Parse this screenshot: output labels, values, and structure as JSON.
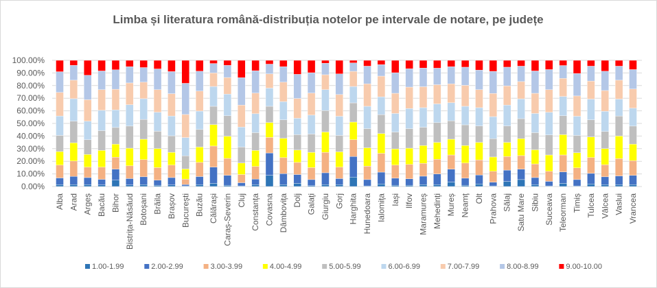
{
  "chart_data": {
    "type": "bar",
    "stacked": true,
    "percent_stacked": true,
    "title": "Limba și literatura română-distribuția notelor pe intervale de notare, pe județe",
    "xlabel": "",
    "ylabel": "",
    "ylim": [
      0,
      100
    ],
    "y_ticks": [
      "0.00%",
      "10.00%",
      "20.00%",
      "30.00%",
      "40.00%",
      "50.00%",
      "60.00%",
      "70.00%",
      "80.00%",
      "90.00%",
      "100.00%"
    ],
    "grid": true,
    "legend_position": "bottom",
    "categories": [
      "Alba",
      "Arad",
      "Argeș",
      "Bacău",
      "Bihor",
      "Bistrița-Năsăud",
      "Botoșani",
      "Brăila",
      "Brașov",
      "București",
      "Buzău",
      "Călărași",
      "Caraș-Severin",
      "Cluj",
      "Constanța",
      "Covasna",
      "Dâmbovița",
      "Dolj",
      "Galați",
      "Giurgiu",
      "Gorj",
      "Harghita",
      "Hunedoara",
      "Ialomița",
      "Iași",
      "Ilfov",
      "Maramureș",
      "Mehedinți",
      "Mureș",
      "Neamț",
      "Olt",
      "Prahova",
      "Sălaj",
      "Satu Mare",
      "Sibiu",
      "Suceava",
      "Teleorman",
      "Timiș",
      "Tulcea",
      "Vâlcea",
      "Vaslui",
      "Vrancea"
    ],
    "series": [
      {
        "name": "1.00-1.99",
        "color": "#2E75B6",
        "values": [
          1.5,
          1.5,
          1.5,
          1.2,
          5,
          1.2,
          1.5,
          1,
          1.2,
          0.5,
          1.5,
          2.5,
          1,
          0.5,
          1.5,
          8.9,
          1.5,
          2.5,
          0.7,
          1.5,
          1.5,
          7.5,
          0.5,
          2,
          1,
          1,
          1.5,
          1.5,
          3.5,
          1,
          2,
          0.5,
          4,
          5.5,
          1.5,
          0.5,
          2.5,
          0.5,
          2,
          1.5,
          1.5,
          1.5
        ]
      },
      {
        "name": "2.00-2.99",
        "color": "#4472C4",
        "values": [
          5.3,
          6.5,
          5.6,
          4.5,
          8.8,
          5.1,
          6.2,
          4,
          5.9,
          1.1,
          6.4,
          12.9,
          7.9,
          2.5,
          4.4,
          17.7,
          8.7,
          7,
          4.8,
          9.4,
          4.8,
          16.3,
          5,
          9.4,
          5.6,
          5.1,
          6.7,
          8.5,
          10.3,
          5.6,
          7.1,
          2.9,
          9,
          8.3,
          5.6,
          3.6,
          9.1,
          5,
          8.4,
          6.2,
          6.9,
          7.3
        ]
      },
      {
        "name": "3.00-3.99",
        "color": "#F4B183",
        "values": [
          10.2,
          12.2,
          8.3,
          9.7,
          9.4,
          10.1,
          13.6,
          10,
          9.9,
          4.3,
          11.2,
          16.7,
          13.4,
          6.5,
          10,
          12.3,
          12.7,
          9.6,
          9.5,
          16.2,
          9.1,
          13.3,
          10.6,
          14.9,
          10.4,
          11.4,
          10.2,
          11.6,
          11.2,
          12,
          12,
          8.7,
          10.8,
          10.7,
          10.8,
          8,
          13.4,
          9.3,
          12.6,
          9.6,
          13.7,
          11.7
        ]
      },
      {
        "name": "4.00-4.99",
        "color": "#FFFF00",
        "values": [
          10.7,
          14.4,
          10,
          13.2,
          10.4,
          14,
          16.2,
          15,
          10.1,
          8,
          12.2,
          17,
          17.5,
          9.1,
          12.7,
          11.8,
          15.3,
          9.8,
          12.1,
          16.1,
          12.1,
          14,
          14.6,
          15.7,
          12.8,
          12.9,
          14.1,
          13.4,
          12.5,
          13.9,
          13.9,
          11.3,
          11.2,
          13.4,
          11.2,
          12.9,
          16.1,
          12,
          16.3,
          12.7,
          17.9,
          13.1
        ]
      },
      {
        "name": "5.00-5.99",
        "color": "#BFBFBF",
        "values": [
          12.8,
          17.2,
          11.7,
          15.7,
          13.2,
          17.5,
          15.7,
          13.8,
          13.1,
          10.4,
          13.9,
          14.5,
          16.3,
          12.7,
          14.1,
          12.9,
          14.7,
          12.2,
          14.5,
          17,
          13,
          15.2,
          15.2,
          15,
          13.4,
          15.5,
          14.5,
          15.7,
          14.6,
          16.4,
          13,
          14.5,
          13,
          15.9,
          13.6,
          15.9,
          15,
          13.7,
          13.6,
          13.6,
          15.9,
          14.3
        ]
      },
      {
        "name": "6.00-6.99",
        "color": "#BDD7EE",
        "values": [
          15.4,
          17.8,
          14.7,
          16.1,
          13.9,
          16.9,
          16.4,
          15.1,
          15.7,
          14.5,
          14.6,
          15.7,
          17.1,
          15.8,
          15,
          14.4,
          14.4,
          13,
          15,
          16.6,
          15.2,
          13,
          17.7,
          14.1,
          14.7,
          15.9,
          15.5,
          14.8,
          14.3,
          14.7,
          14.5,
          17.5,
          16.5,
          15.7,
          15.2,
          17.9,
          15.3,
          15.2,
          16.4,
          16,
          13.4,
          14.2
        ]
      },
      {
        "name": "7.00-7.99",
        "color": "#F8CBAD",
        "values": [
          18.7,
          14.7,
          17,
          16.4,
          16.4,
          17.3,
          13.1,
          17.9,
          17.7,
          18.3,
          15.9,
          10.7,
          13.2,
          17.4,
          16.4,
          11.3,
          15.4,
          15.7,
          17.5,
          11.8,
          17.2,
          12,
          17.8,
          16.4,
          16,
          17,
          16.6,
          15.2,
          15,
          16.6,
          14.3,
          18.4,
          15.3,
          13.7,
          16,
          18,
          14.3,
          16.1,
          14.3,
          16.5,
          15,
          15.2
        ]
      },
      {
        "name": "8.00-8.99",
        "color": "#B4C7E7",
        "values": [
          16.4,
          11.7,
          19.4,
          14.8,
          15.4,
          12.9,
          11.6,
          16.4,
          17.5,
          24.7,
          15.7,
          7.5,
          9.6,
          21.8,
          17.7,
          7.7,
          12.3,
          19.1,
          16.1,
          9.1,
          16.4,
          6.7,
          14,
          9.1,
          16.3,
          14.6,
          14.8,
          13.1,
          13.6,
          14.4,
          15.5,
          17.5,
          14.8,
          12.2,
          17.7,
          15.9,
          10.2,
          17.8,
          11.8,
          15.3,
          11.1,
          15.4
        ]
      },
      {
        "name": "9.00-10.00",
        "color": "#FF0000",
        "values": [
          9,
          4,
          11.8,
          8.4,
          7.5,
          5,
          5.7,
          6.8,
          8.9,
          18.2,
          8.6,
          2.5,
          4,
          13.7,
          8.2,
          3,
          5,
          11.1,
          9.8,
          2.3,
          10.7,
          2,
          4.6,
          3.4,
          9.8,
          6.6,
          6.1,
          6.2,
          5,
          5.4,
          7.7,
          8.7,
          5.4,
          4.6,
          8.4,
          7.3,
          4.1,
          10.4,
          4.6,
          8.6,
          4.6,
          7.3
        ]
      }
    ]
  }
}
